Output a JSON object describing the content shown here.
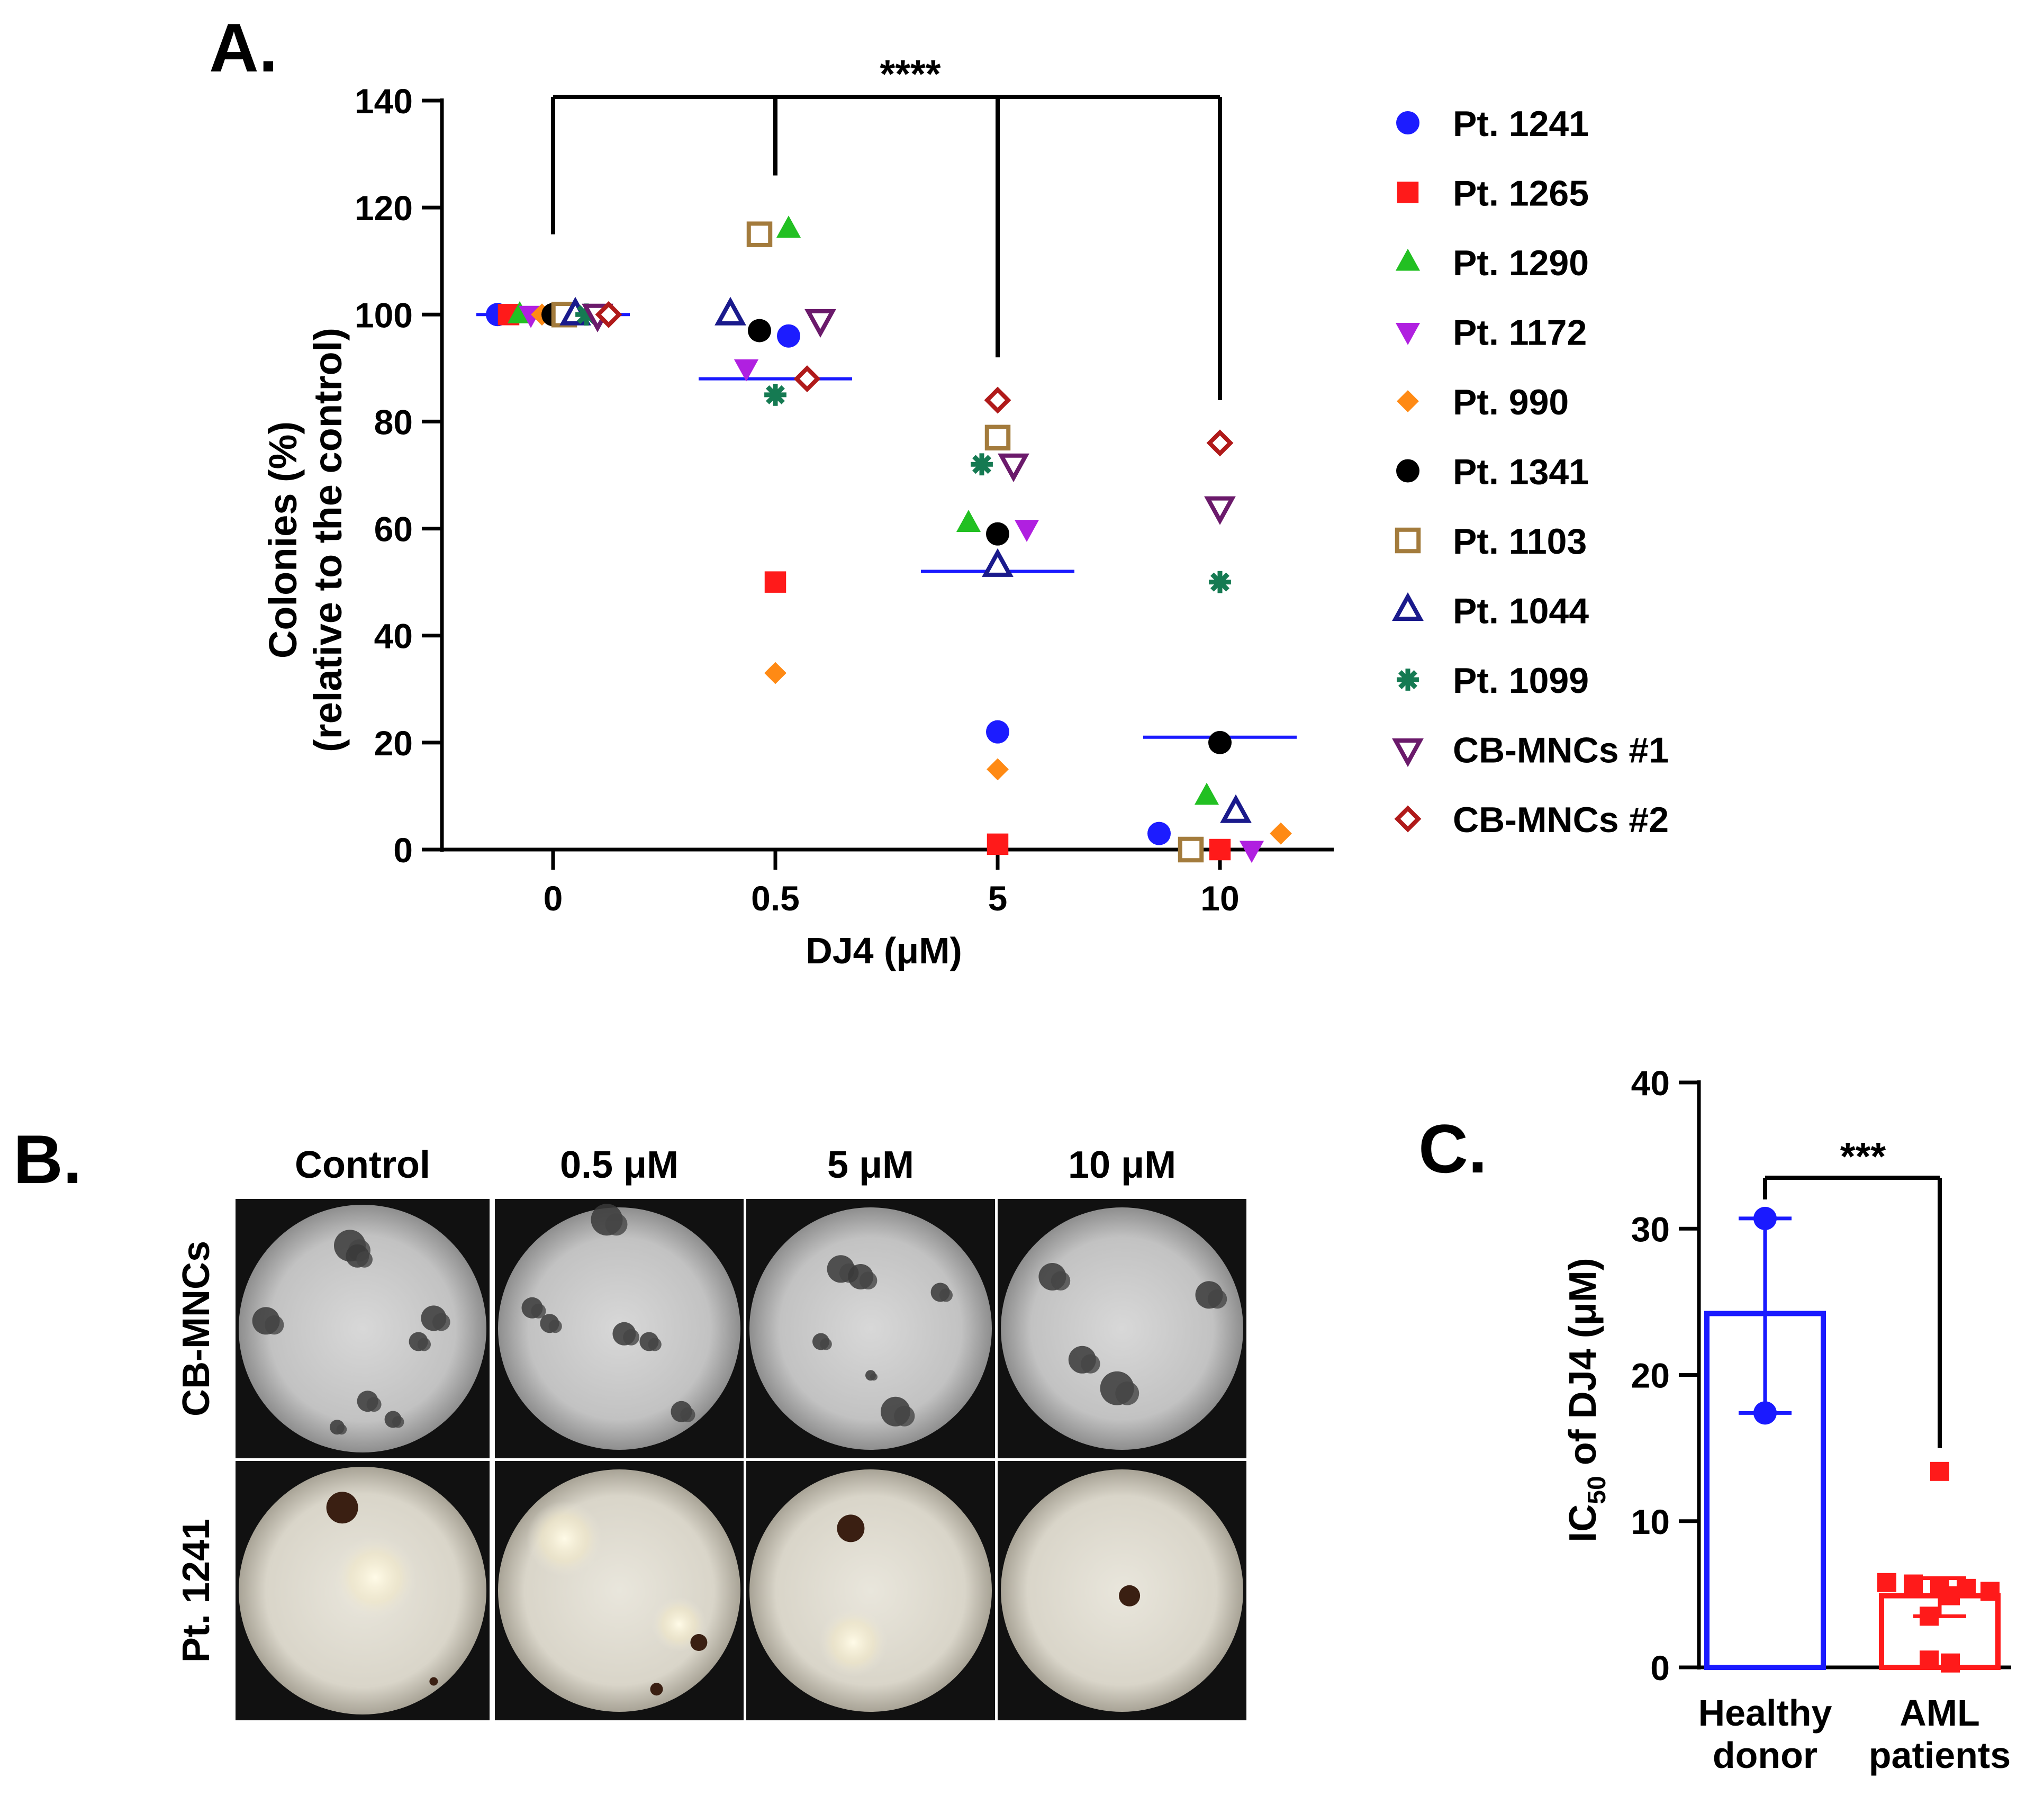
{
  "panels": {
    "a_label": "A.",
    "b_label": "B.",
    "c_label": "C."
  },
  "chart_data": [
    {
      "type": "scatter",
      "panel": "A.",
      "title": "",
      "xlabel": "DJ4 (μM)",
      "ylabel_line1": "Colonies (%)",
      "ylabel_line2": "(relative to the control)",
      "ylim": [
        0,
        140
      ],
      "yticks": [
        "0",
        "20",
        "40",
        "60",
        "80",
        "100",
        "120",
        "140"
      ],
      "categories": [
        "0",
        "0.5",
        "5",
        "10"
      ],
      "mean_line_color": "#1a1aff",
      "means": [
        100,
        88,
        52,
        21
      ],
      "significance": "****",
      "legend_position": "right",
      "series": [
        {
          "name": "Pt. 1241",
          "marker": "circle",
          "filled": true,
          "color": "#1c1cff",
          "values": [
            100,
            96,
            22,
            3
          ]
        },
        {
          "name": "Pt. 1265",
          "marker": "square",
          "filled": true,
          "color": "#ff1a1a",
          "values": [
            100,
            50,
            1,
            0
          ]
        },
        {
          "name": "Pt. 1290",
          "marker": "triangle-up",
          "filled": true,
          "color": "#22c022",
          "values": [
            100,
            116,
            61,
            10
          ]
        },
        {
          "name": "Pt. 1172",
          "marker": "triangle-down",
          "filled": true,
          "color": "#b020e0",
          "values": [
            100,
            90,
            60,
            0
          ]
        },
        {
          "name": "Pt. 990",
          "marker": "diamond",
          "filled": true,
          "color": "#ff8a14",
          "values": [
            100,
            33,
            15,
            3
          ]
        },
        {
          "name": "Pt. 1341",
          "marker": "circle",
          "filled": true,
          "color": "#000000",
          "values": [
            100,
            97,
            59,
            20
          ]
        },
        {
          "name": "Pt. 1103",
          "marker": "square",
          "filled": false,
          "color": "#a37b3c",
          "values": [
            100,
            115,
            77,
            0
          ]
        },
        {
          "name": "Pt. 1044",
          "marker": "triangle-up",
          "filled": false,
          "color": "#1a1a8c",
          "values": [
            100,
            100,
            53,
            7
          ]
        },
        {
          "name": "Pt. 1099",
          "marker": "asterisk",
          "filled": true,
          "color": "#157a52",
          "values": [
            100,
            85,
            72,
            50
          ]
        },
        {
          "name": "CB-MNCs #1",
          "marker": "triangle-down",
          "filled": false,
          "color": "#6b1a6b",
          "values": [
            100,
            99,
            72,
            64
          ]
        },
        {
          "name": "CB-MNCs #2",
          "marker": "diamond",
          "filled": false,
          "color": "#b01a1a",
          "values": [
            100,
            88,
            84,
            76
          ]
        }
      ]
    },
    {
      "type": "bar",
      "panel": "C.",
      "title": "",
      "ylabel_prefix": "IC",
      "ylabel_sub": "50",
      "ylabel_suffix": " of DJ4 (μM)",
      "ylim": [
        0,
        40
      ],
      "yticks": [
        "0",
        "10",
        "20",
        "30",
        "40"
      ],
      "categories": [
        [
          "Healthy",
          "donor"
        ],
        [
          "AML",
          "patients"
        ]
      ],
      "significance": "***",
      "bars": [
        {
          "value": 24.2,
          "error": [
            17.4,
            30.7
          ],
          "color": "#1a1aff",
          "points": [
            30.7,
            17.4
          ]
        },
        {
          "value": 4.9,
          "error": [
            3.5,
            6.1
          ],
          "color": "#ff1a1a",
          "points": [
            13.4,
            5.8,
            5.7,
            5.5,
            5.4,
            5.2,
            4.9,
            3.5,
            0.5,
            0.3
          ]
        }
      ]
    }
  ],
  "micrographs": {
    "columns": [
      "Control",
      "0.5 μM",
      "5 μM",
      "10 μM"
    ],
    "rows": [
      "CB-MNCs",
      "Pt. 1241"
    ]
  }
}
